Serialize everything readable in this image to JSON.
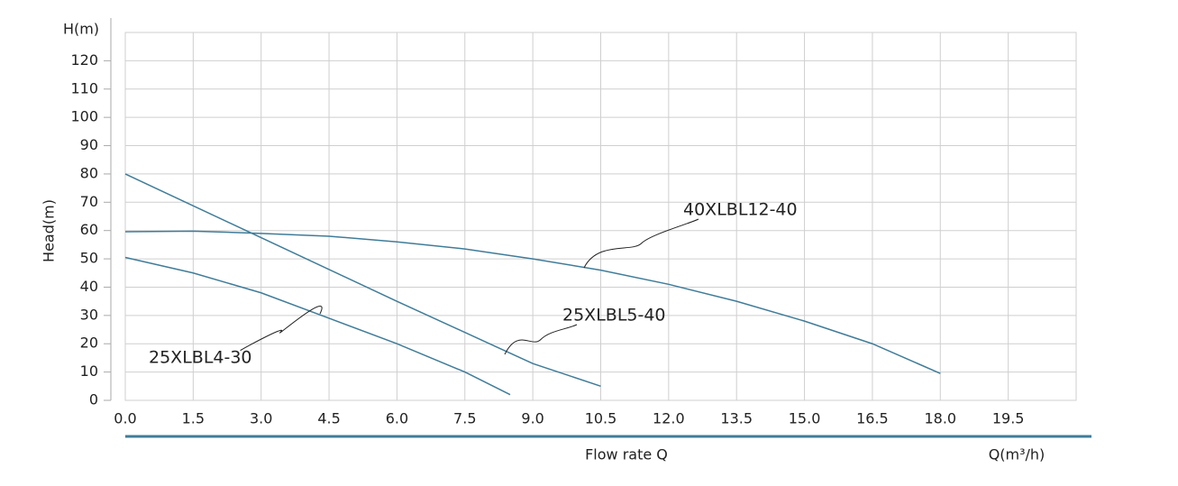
{
  "chart_data": {
    "type": "line",
    "y_top_label": "H(m)",
    "y_axis_label": "Head(m)",
    "x_axis_label": "Flow rate Q",
    "x_unit_label": "Q(m³/h)",
    "xlim": [
      0,
      21
    ],
    "ylim": [
      0,
      130
    ],
    "xticks": [
      {
        "value": 0,
        "label": "0.0"
      },
      1.5,
      {
        "value": 3,
        "label": "3.0"
      },
      4.5,
      {
        "value": 6,
        "label": "6.0"
      },
      7.5,
      {
        "value": 9,
        "label": "9.0"
      },
      10.5,
      {
        "value": 12,
        "label": "12.0"
      },
      13.5,
      {
        "value": 15,
        "label": "15.0"
      },
      16.5,
      {
        "value": 18,
        "label": "18.0"
      },
      19.5
    ],
    "yticks": [
      0,
      10,
      20,
      30,
      40,
      50,
      60,
      70,
      80,
      90,
      100,
      110,
      120
    ],
    "grid": true,
    "series": [
      {
        "name": "40XLBL12-40",
        "color": "#3f7c99",
        "x": [
          0,
          1.5,
          3,
          4.5,
          6,
          7.5,
          9,
          10.5,
          12,
          13.5,
          15,
          16.5,
          18
        ],
        "values": [
          59.6,
          59.8,
          59,
          58,
          56,
          53.5,
          50,
          46,
          41,
          35,
          28,
          20,
          9.5
        ]
      },
      {
        "name": "25XLBL5-40",
        "color": "#3f7c99",
        "x": [
          0,
          3,
          6,
          9,
          10.5
        ],
        "values": [
          80,
          57.5,
          35,
          13,
          5
        ]
      },
      {
        "name": "25XLBL4-30",
        "color": "#3f7c99",
        "x": [
          0,
          1.5,
          3,
          4.5,
          6,
          7.5,
          8.5
        ],
        "values": [
          50.5,
          45,
          38,
          29,
          20,
          10,
          2
        ]
      }
    ]
  }
}
